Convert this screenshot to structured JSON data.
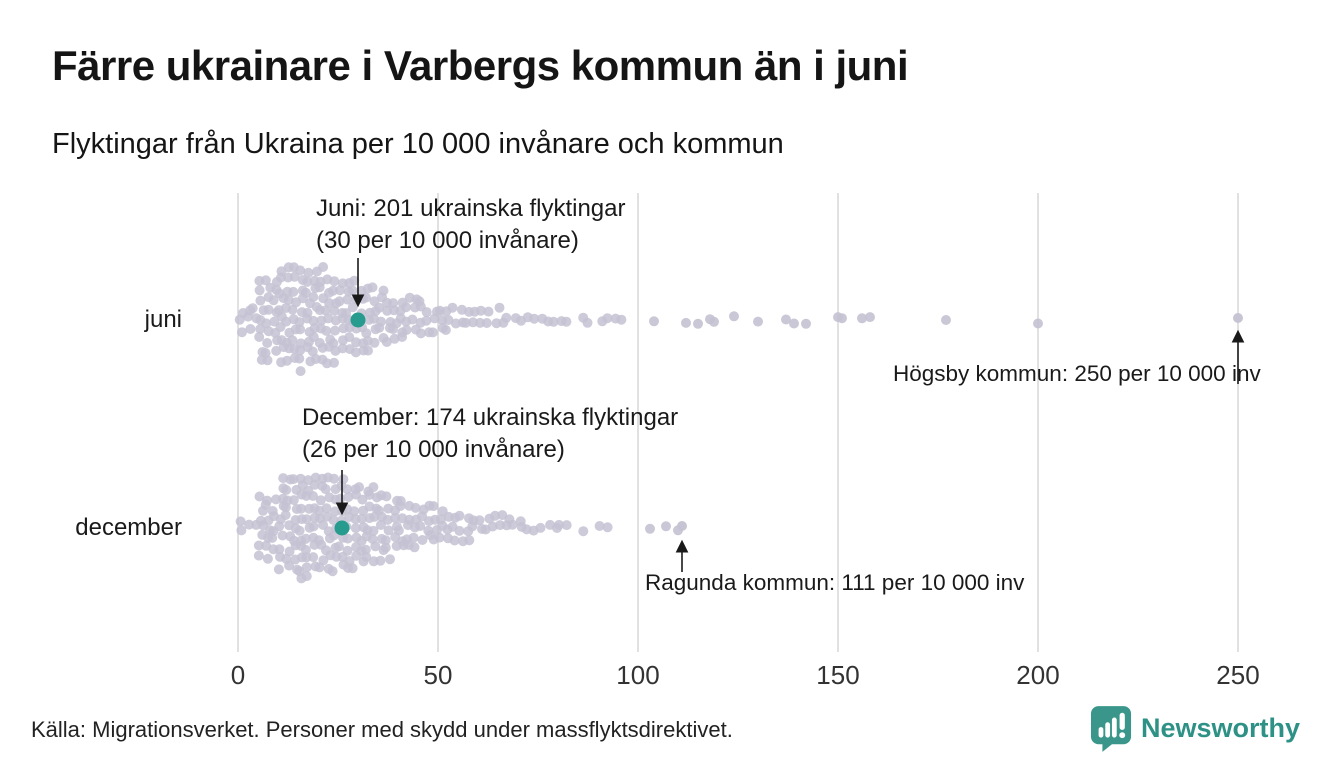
{
  "header": {
    "title": "Färre ukrainare i Varbergs kommun än i juni",
    "subtitle": "Flyktingar från Ukraina per 10 000 invånare och kommun"
  },
  "footer": {
    "source": "Källa: Migrationsverket. Personer med skydd under massflyktsdirektivet.",
    "brand_name": "Newsworthy"
  },
  "colors": {
    "dot": "#c4c2d2",
    "highlight": "#279c8e",
    "grid": "#d7d7d7",
    "axis_text": "#333333",
    "annotation_text": "#1a1a1a",
    "brand_teal": "#3a968b",
    "brand_text_teal": "#2e9186"
  },
  "icons": {
    "brand_icon": "newsworthy-speech-bubble-bar-chart-icon"
  },
  "chart_data": {
    "type": "beeswarm",
    "title": "Färre ukrainare i Varbergs kommun än i juni",
    "subtitle": "Flyktingar från Ukraina per 10 000 invånare och kommun",
    "xlabel": "",
    "ylabel": "",
    "unit": "per 10 000 invånare",
    "grid": true,
    "x_axis": {
      "min": 0,
      "max": 250,
      "ticks": [
        0,
        50,
        100,
        150,
        200,
        250
      ]
    },
    "rows": [
      {
        "label": "juni",
        "highlight": {
          "value": 30,
          "refugees": 201,
          "line1": "Juni: 201 ukrainska flyktingar",
          "line2": "(30 per 10 000 invånare)"
        },
        "max": {
          "value": 250,
          "kommun": "Högsby",
          "label": "Högsby kommun: 250 per 10 000 inv"
        },
        "bins": [
          [
            0,
            5,
            8
          ],
          [
            5,
            10,
            26
          ],
          [
            10,
            15,
            30
          ],
          [
            15,
            20,
            31
          ],
          [
            20,
            25,
            28
          ],
          [
            25,
            30,
            24
          ],
          [
            30,
            35,
            20
          ],
          [
            35,
            40,
            16
          ],
          [
            40,
            45,
            13
          ],
          [
            45,
            50,
            10
          ],
          [
            50,
            55,
            8
          ],
          [
            55,
            60,
            6
          ],
          [
            60,
            65,
            5
          ],
          [
            65,
            70,
            4
          ],
          [
            70,
            75,
            3
          ],
          [
            75,
            80,
            3
          ],
          [
            80,
            85,
            2
          ],
          [
            85,
            90,
            2
          ],
          [
            90,
            95,
            3
          ],
          [
            95,
            100,
            1
          ]
        ],
        "outliers": [
          104,
          112,
          115,
          118,
          119,
          124,
          130,
          137,
          139,
          142,
          150,
          151,
          156,
          158,
          177,
          200
        ]
      },
      {
        "label": "december",
        "highlight": {
          "value": 26,
          "refugees": 174,
          "line1": "December: 174 ukrainska flyktingar",
          "line2": "(26 per 10 000 invånare)"
        },
        "max": {
          "value": 111,
          "kommun": "Ragunda",
          "label": "Ragunda kommun: 111 per 10 000 inv"
        },
        "bins": [
          [
            0,
            5,
            4
          ],
          [
            5,
            10,
            20
          ],
          [
            10,
            15,
            30
          ],
          [
            15,
            20,
            32
          ],
          [
            20,
            25,
            30
          ],
          [
            25,
            30,
            28
          ],
          [
            30,
            35,
            24
          ],
          [
            35,
            40,
            20
          ],
          [
            40,
            45,
            16
          ],
          [
            45,
            50,
            12
          ],
          [
            50,
            55,
            10
          ],
          [
            55,
            60,
            8
          ],
          [
            60,
            65,
            6
          ],
          [
            65,
            70,
            5
          ],
          [
            70,
            75,
            4
          ],
          [
            75,
            80,
            3
          ],
          [
            80,
            85,
            2
          ],
          [
            85,
            90,
            1
          ],
          [
            90,
            95,
            2
          ]
        ],
        "outliers": [
          103,
          107,
          110
        ]
      }
    ]
  }
}
